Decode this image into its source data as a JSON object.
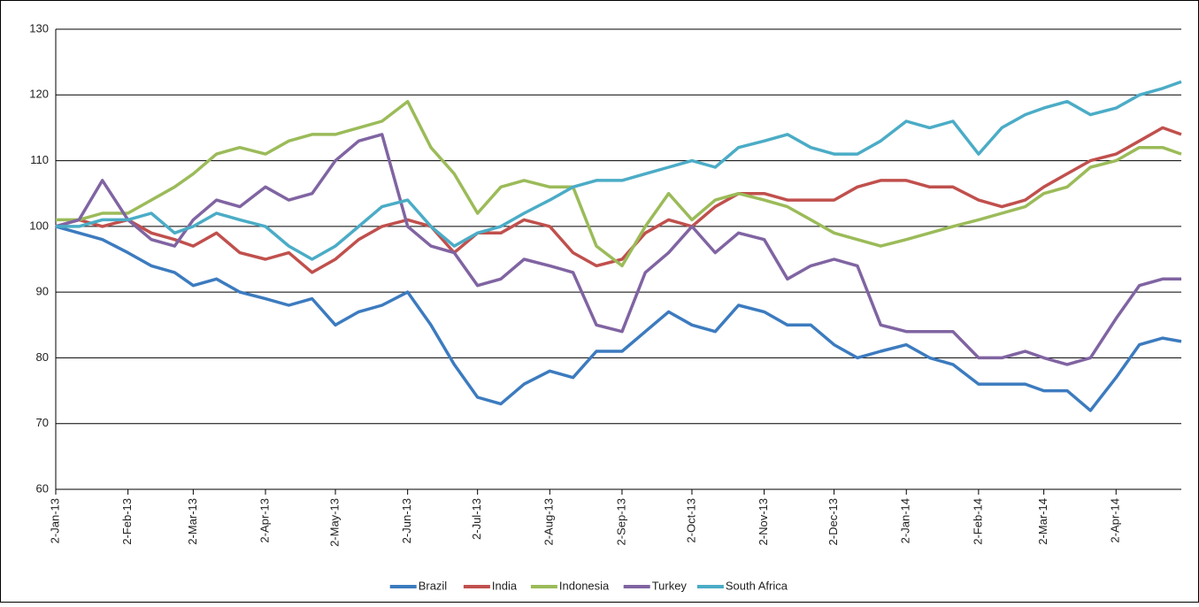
{
  "chart_data": {
    "type": "line",
    "x": [
      "2013-01-02",
      "2013-01-12",
      "2013-01-22",
      "2013-02-02",
      "2013-02-12",
      "2013-02-22",
      "2013-03-02",
      "2013-03-12",
      "2013-03-22",
      "2013-04-02",
      "2013-04-12",
      "2013-04-22",
      "2013-05-02",
      "2013-05-12",
      "2013-05-22",
      "2013-06-02",
      "2013-06-12",
      "2013-06-22",
      "2013-07-02",
      "2013-07-12",
      "2013-07-22",
      "2013-08-02",
      "2013-08-12",
      "2013-08-22",
      "2013-09-02",
      "2013-09-12",
      "2013-09-22",
      "2013-10-02",
      "2013-10-12",
      "2013-10-22",
      "2013-11-02",
      "2013-11-12",
      "2013-11-22",
      "2013-12-02",
      "2013-12-12",
      "2013-12-22",
      "2014-01-02",
      "2014-01-12",
      "2014-01-22",
      "2014-02-02",
      "2014-02-12",
      "2014-02-22",
      "2014-03-02",
      "2014-03-12",
      "2014-03-22",
      "2014-04-02",
      "2014-04-12",
      "2014-04-22",
      "2014-04-30"
    ],
    "series": [
      {
        "name": "Brazil",
        "color": "#3c7bbf",
        "values": [
          100,
          99,
          98,
          96,
          94,
          93,
          91,
          92,
          90,
          89,
          88,
          89,
          85,
          87,
          88,
          90,
          85,
          79,
          74,
          73,
          76,
          78,
          77,
          81,
          81,
          84,
          87,
          85,
          84,
          88,
          87,
          85,
          85,
          82,
          80,
          81,
          82,
          80,
          79,
          76,
          76,
          76,
          75,
          75,
          72,
          77,
          82,
          83,
          82.5
        ]
      },
      {
        "name": "India",
        "color": "#c0504d",
        "values": [
          100,
          101,
          100,
          101,
          99,
          98,
          97,
          99,
          96,
          95,
          96,
          93,
          95,
          98,
          100,
          101,
          100,
          96,
          99,
          99,
          101,
          100,
          96,
          94,
          95,
          99,
          101,
          100,
          103,
          105,
          105,
          104,
          104,
          104,
          106,
          107,
          107,
          106,
          106,
          104,
          103,
          104,
          106,
          108,
          110,
          111,
          113,
          115,
          114
        ]
      },
      {
        "name": "Indonesia",
        "color": "#9bbb59",
        "values": [
          101,
          101,
          102,
          102,
          104,
          106,
          108,
          111,
          112,
          111,
          113,
          114,
          114,
          115,
          116,
          119,
          112,
          108,
          102,
          106,
          107,
          106,
          106,
          97,
          94,
          100,
          105,
          101,
          104,
          105,
          104,
          103,
          101,
          99,
          98,
          97,
          98,
          99,
          100,
          101,
          102,
          103,
          105,
          106,
          109,
          110,
          112,
          112,
          111
        ]
      },
      {
        "name": "Turkey",
        "color": "#8064a2",
        "values": [
          100,
          101,
          107,
          101,
          98,
          97,
          101,
          104,
          103,
          106,
          104,
          105,
          110,
          113,
          114,
          100,
          97,
          96,
          91,
          92,
          95,
          94,
          93,
          85,
          84,
          93,
          96,
          100,
          96,
          99,
          98,
          92,
          94,
          95,
          94,
          85,
          84,
          84,
          84,
          80,
          80,
          81,
          80,
          79,
          80,
          86,
          91,
          92,
          92
        ]
      },
      {
        "name": "South Africa",
        "color": "#4bacc6",
        "values": [
          100,
          100,
          101,
          101,
          102,
          99,
          100,
          102,
          101,
          100,
          97,
          95,
          97,
          100,
          103,
          104,
          100,
          97,
          99,
          100,
          102,
          104,
          106,
          107,
          107,
          108,
          109,
          110,
          109,
          112,
          113,
          114,
          112,
          111,
          111,
          113,
          116,
          115,
          116,
          111,
          115,
          117,
          118,
          119,
          117,
          118,
          120,
          121,
          122
        ]
      }
    ],
    "xlim": [
      "2013-01-02",
      "2014-04-30"
    ],
    "xticks": [
      {
        "value": "2013-01-02",
        "label": "2-Jan-13"
      },
      {
        "value": "2013-02-02",
        "label": "2-Feb-13"
      },
      {
        "value": "2013-03-02",
        "label": "2-Mar-13"
      },
      {
        "value": "2013-04-02",
        "label": "2-Apr-13"
      },
      {
        "value": "2013-05-02",
        "label": "2-May-13"
      },
      {
        "value": "2013-06-02",
        "label": "2-Jun-13"
      },
      {
        "value": "2013-07-02",
        "label": "2-Jul-13"
      },
      {
        "value": "2013-08-02",
        "label": "2-Aug-13"
      },
      {
        "value": "2013-09-02",
        "label": "2-Sep-13"
      },
      {
        "value": "2013-10-02",
        "label": "2-Oct-13"
      },
      {
        "value": "2013-11-02",
        "label": "2-Nov-13"
      },
      {
        "value": "2013-12-02",
        "label": "2-Dec-13"
      },
      {
        "value": "2014-01-02",
        "label": "2-Jan-14"
      },
      {
        "value": "2014-02-02",
        "label": "2-Feb-14"
      },
      {
        "value": "2014-03-02",
        "label": "2-Mar-14"
      },
      {
        "value": "2014-04-02",
        "label": "2-Apr-14"
      }
    ],
    "ylim": [
      60,
      130
    ],
    "yticks": [
      60,
      70,
      80,
      90,
      100,
      110,
      120,
      130
    ],
    "grid": true,
    "legend": "bottom"
  }
}
